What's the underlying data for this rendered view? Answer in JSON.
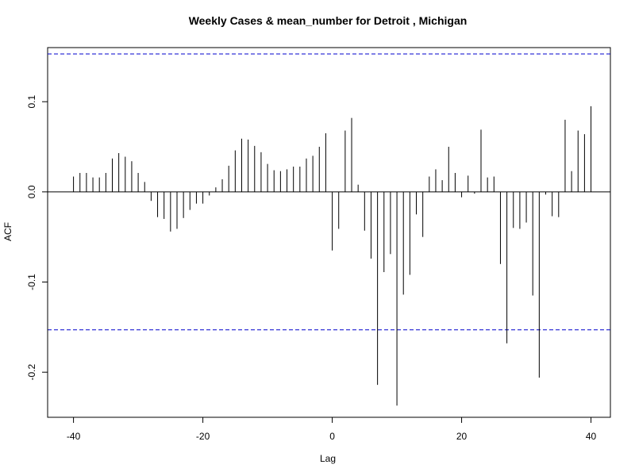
{
  "chart_data": {
    "type": "bar",
    "title": "Weekly Cases & mean_number for Detroit , Michigan",
    "xlabel": "Lag",
    "ylabel": "ACF",
    "xlim": [
      -44,
      43
    ],
    "ylim": [
      -0.25,
      0.16
    ],
    "x_ticks": [
      -40,
      -20,
      0,
      20,
      40
    ],
    "x_tick_labels": [
      "-40",
      "-20",
      "0",
      "20",
      "40"
    ],
    "y_ticks": [
      -0.2,
      -0.1,
      0.0,
      0.1
    ],
    "y_tick_labels": [
      "-0.2",
      "-0.1",
      "0.0",
      "0.1"
    ],
    "confidence_band": [
      -0.153,
      0.153
    ],
    "grid": false,
    "legend": "none",
    "colors": {
      "bars": "#000000",
      "confidence": "#0000cc",
      "axes": "#000000"
    },
    "x": [
      -40,
      -39,
      -38,
      -37,
      -36,
      -35,
      -34,
      -33,
      -32,
      -31,
      -30,
      -29,
      -28,
      -27,
      -26,
      -25,
      -24,
      -23,
      -22,
      -21,
      -20,
      -19,
      -18,
      -17,
      -16,
      -15,
      -14,
      -13,
      -12,
      -11,
      -10,
      -9,
      -8,
      -7,
      -6,
      -5,
      -4,
      -3,
      -2,
      -1,
      0,
      1,
      2,
      3,
      4,
      5,
      6,
      7,
      8,
      9,
      10,
      11,
      12,
      13,
      14,
      15,
      16,
      17,
      18,
      19,
      20,
      21,
      22,
      23,
      24,
      25,
      26,
      27,
      28,
      29,
      30,
      31,
      32,
      33,
      34,
      35,
      36,
      37,
      38,
      39,
      40
    ],
    "values": [
      0.017,
      0.021,
      0.021,
      0.016,
      0.016,
      0.021,
      0.037,
      0.043,
      0.039,
      0.034,
      0.021,
      0.011,
      -0.01,
      -0.028,
      -0.03,
      -0.044,
      -0.041,
      -0.029,
      -0.02,
      -0.013,
      -0.013,
      -0.004,
      0.005,
      0.014,
      0.029,
      0.046,
      0.059,
      0.058,
      0.051,
      0.044,
      0.031,
      0.024,
      0.023,
      0.025,
      0.028,
      0.028,
      0.037,
      0.04,
      0.05,
      0.065,
      -0.065,
      -0.041,
      0.068,
      0.082,
      0.008,
      -0.043,
      -0.074,
      -0.214,
      -0.089,
      -0.069,
      -0.237,
      -0.114,
      -0.092,
      -0.025,
      -0.05,
      0.017,
      0.025,
      0.013,
      0.05,
      0.021,
      -0.006,
      0.018,
      -0.002,
      0.069,
      0.016,
      0.017,
      -0.08,
      -0.168,
      -0.04,
      -0.041,
      -0.034,
      -0.115,
      -0.206,
      -0.003,
      -0.027,
      -0.028,
      0.08,
      0.023,
      0.068,
      0.064,
      0.095
    ]
  }
}
